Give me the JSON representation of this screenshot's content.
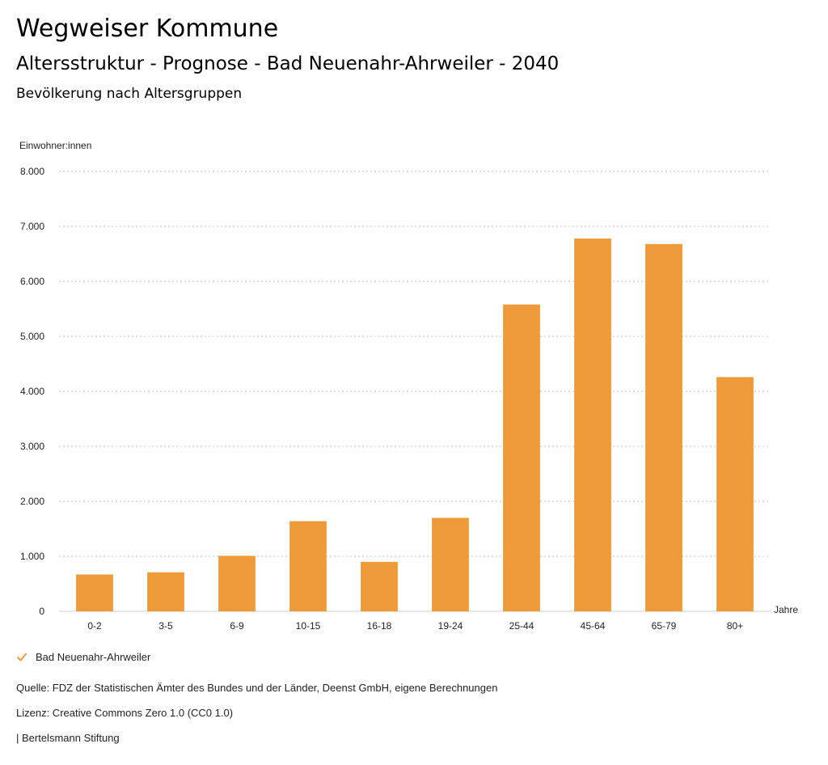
{
  "header": {
    "title": "Wegweiser Kommune",
    "subtitle": "Altersstruktur - Prognose - Bad Neuenahr-Ahrweiler - 2040",
    "subsubtitle": "Bevölkerung nach Altersgruppen"
  },
  "chart_data": {
    "type": "bar",
    "title": "Bevölkerung nach Altersgruppen",
    "ylabel": "Einwohner:innen",
    "xlabel": "Jahre",
    "ylim": [
      0,
      8000
    ],
    "yticks": [
      0,
      1000,
      2000,
      3000,
      4000,
      5000,
      6000,
      7000,
      8000
    ],
    "ytick_labels": [
      "0",
      "1.000",
      "2.000",
      "3.000",
      "4.000",
      "5.000",
      "6.000",
      "7.000",
      "8.000"
    ],
    "categories": [
      "0-2",
      "3-5",
      "6-9",
      "10-15",
      "16-18",
      "19-24",
      "25-44",
      "45-64",
      "65-79",
      "80+"
    ],
    "series": [
      {
        "name": "Bad Neuenahr-Ahrweiler",
        "color": "#ee9a38",
        "values": [
          670,
          710,
          1010,
          1640,
          900,
          1700,
          5580,
          6780,
          6680,
          4260
        ]
      }
    ],
    "grid": true,
    "legend": "bottom-left"
  },
  "legend": {
    "label": "Bad Neuenahr-Ahrweiler"
  },
  "footer": {
    "source": "Quelle: FDZ der Statistischen Ämter des Bundes und der Länder, Deenst GmbH, eigene Berechnungen",
    "license": "Lizenz: Creative Commons Zero 1.0 (CC0 1.0)",
    "publisher": "| Bertelsmann Stiftung"
  }
}
